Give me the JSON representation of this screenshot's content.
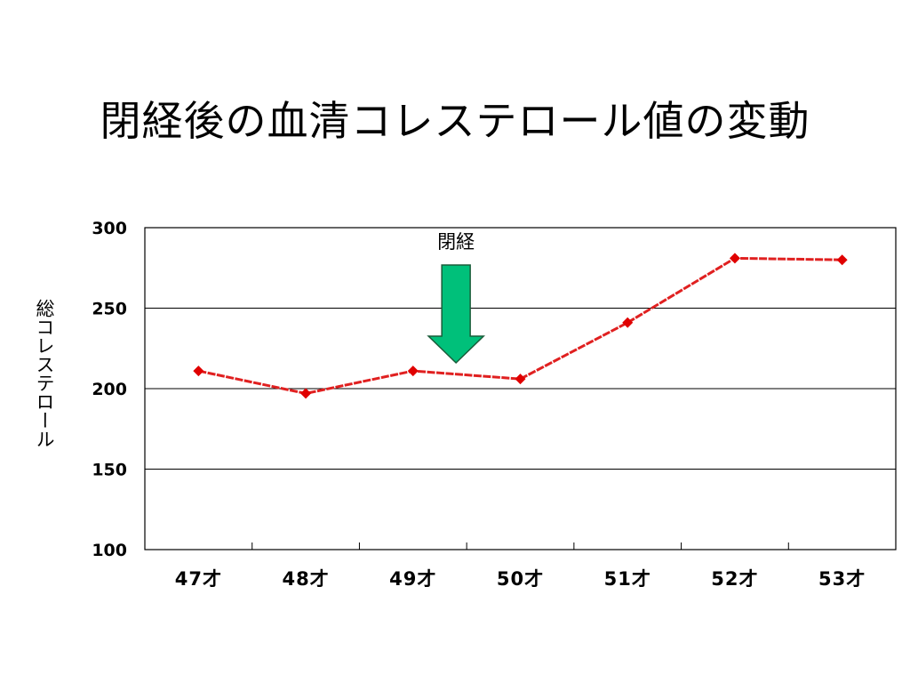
{
  "slide": {
    "title": "閉経後の血清コレステロール値の変動"
  },
  "chart_data": {
    "type": "line",
    "title": "閉経後の血清コレステロール値の変動",
    "xlabel": "",
    "ylabel": "総コレステロール",
    "categories": [
      "47才",
      "48才",
      "49才",
      "50才",
      "51才",
      "52才",
      "53才"
    ],
    "series": [
      {
        "values": [
          211,
          197,
          211,
          206,
          241,
          281,
          280
        ]
      }
    ],
    "ylim": [
      100,
      300
    ],
    "yticks": [
      100,
      150,
      200,
      250,
      300
    ],
    "grid": true,
    "legend": "none",
    "annotations": [
      {
        "text": "閉経",
        "category": "50才"
      }
    ],
    "colors": {
      "line": "#e02020",
      "marker": "#e00000",
      "arrow_fill": "#00c07a",
      "arrow_stroke": "#1a5c3a",
      "grid": "#000000"
    }
  }
}
